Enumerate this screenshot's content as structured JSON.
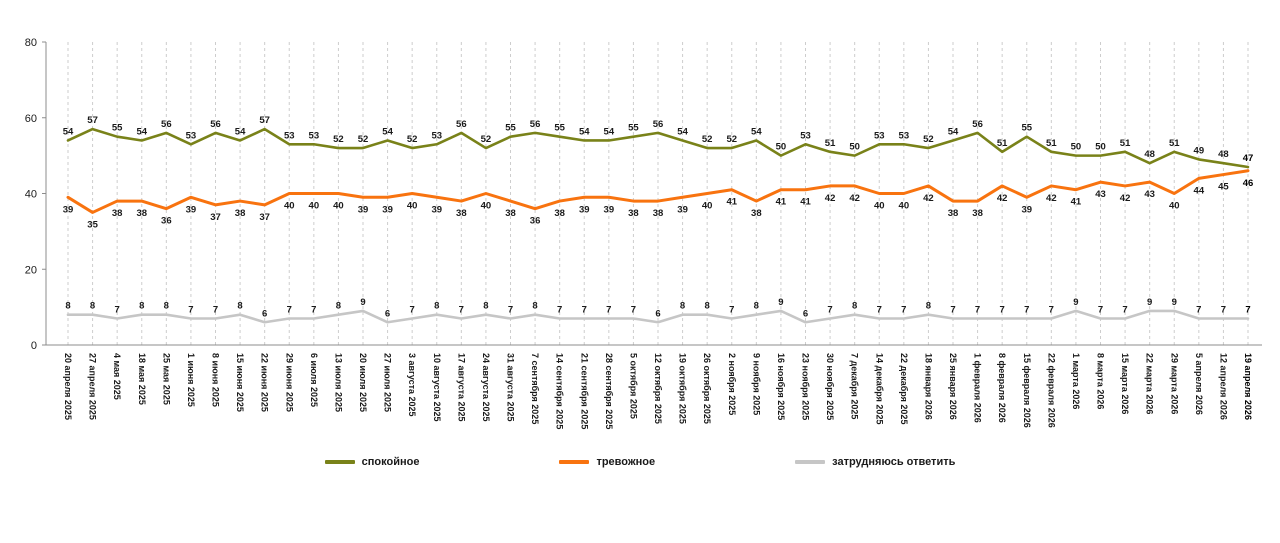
{
  "chart_data": {
    "type": "line",
    "title": "",
    "xlabel": "",
    "ylabel": "",
    "ylim": [
      0,
      80
    ],
    "yticks": [
      0,
      20,
      40,
      60,
      80
    ],
    "grid": "vertical-dashed",
    "legend_position": "bottom",
    "x": [
      "20 апреля 2025",
      "27 апреля 2025",
      "4 мая 2025",
      "18 мая 2025",
      "25 мая 2025",
      "1 июня 2025",
      "8 июня 2025",
      "15 июня 2025",
      "22 июня 2025",
      "29 июня 2025",
      "6 июля 2025",
      "13 июля 2025",
      "20 июля 2025",
      "27 июля 2025",
      "3 августа 2025",
      "10 августа 2025",
      "17 августа 2025",
      "24 августа 2025",
      "31 августа 2025",
      "7 сентября 2025",
      "14 сентября 2025",
      "21 сентября 2025",
      "28 сентября 2025",
      "5 октября 2025",
      "12 октября 2025",
      "19 октября 2025",
      "26 октября 2025",
      "2 ноября 2025",
      "9 ноября 2025",
      "16 ноября 2025",
      "23 ноября 2025",
      "30 ноября 2025",
      "7 декабря 2025",
      "14 декабря 2025",
      "22 декабря 2025",
      "18 января 2026",
      "25 января 2026",
      "1 февраля 2026",
      "8 февраля 2026",
      "15 февраля 2026",
      "22 февраля 2026",
      "1 марта 2026",
      "8 марта 2026",
      "15 марта 2026",
      "22 марта 2026",
      "29 марта 2026",
      "5 апреля 2026",
      "12 апреля 2026",
      "19 апреля 2026"
    ],
    "series": [
      {
        "name": "спокойное",
        "color": "#798219",
        "values": [
          54,
          57,
          55,
          54,
          56,
          53,
          56,
          54,
          57,
          53,
          53,
          52,
          52,
          54,
          52,
          53,
          56,
          52,
          55,
          56,
          55,
          54,
          54,
          55,
          56,
          54,
          52,
          52,
          54,
          50,
          53,
          51,
          50,
          53,
          53,
          52,
          54,
          56,
          51,
          55,
          51,
          50,
          50,
          51,
          48,
          51,
          49,
          48,
          47
        ]
      },
      {
        "name": "тревожное",
        "color": "#F8730F",
        "values": [
          39,
          35,
          38,
          38,
          36,
          39,
          37,
          38,
          37,
          40,
          40,
          40,
          39,
          39,
          40,
          39,
          38,
          40,
          38,
          36,
          38,
          39,
          39,
          38,
          38,
          39,
          40,
          41,
          38,
          41,
          41,
          42,
          42,
          40,
          40,
          42,
          38,
          38,
          42,
          39,
          42,
          41,
          43,
          42,
          43,
          40,
          44,
          45,
          46
        ]
      },
      {
        "name": "затрудняюсь ответить",
        "color": "#C6C6C6",
        "values": [
          8,
          8,
          7,
          8,
          8,
          7,
          7,
          8,
          6,
          7,
          7,
          8,
          9,
          6,
          7,
          8,
          7,
          8,
          7,
          8,
          7,
          7,
          7,
          7,
          6,
          8,
          8,
          7,
          8,
          9,
          6,
          7,
          8,
          7,
          7,
          8,
          7,
          7,
          7,
          7,
          7,
          9,
          7,
          7,
          9,
          9,
          7,
          7,
          7
        ]
      }
    ]
  }
}
